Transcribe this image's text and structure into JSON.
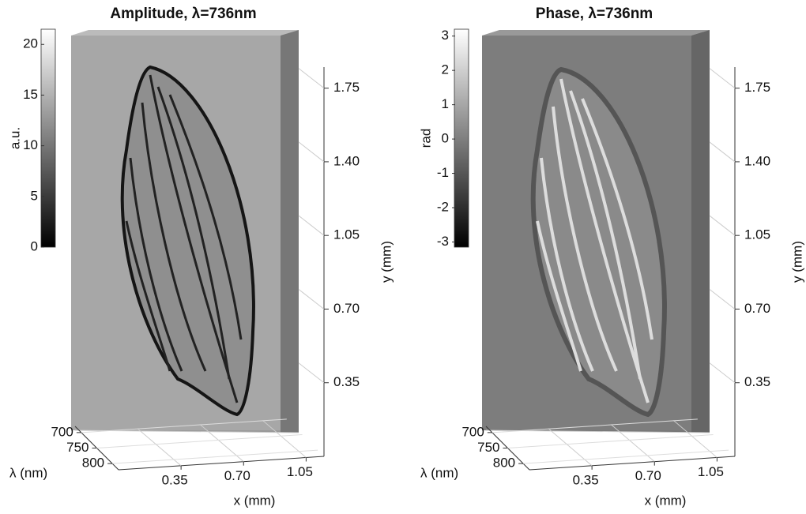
{
  "chart_data": [
    {
      "type": "image-cube",
      "title": "Amplitude, λ=736nm",
      "colorbar": {
        "label": "a.u.",
        "lim": [
          0,
          21.5
        ],
        "ticks": [
          0,
          5,
          10,
          15,
          20
        ]
      },
      "xlabel": "x (mm)",
      "xlim": [
        0,
        1.15
      ],
      "xticks": [
        0.35,
        {
          "value": 0.7,
          "label": "0.70"
        },
        1.05
      ],
      "ylabel": "y (mm)",
      "ylim": [
        0,
        1.85
      ],
      "yticks": [
        0.35,
        {
          "value": 0.7,
          "label": "0.70"
        },
        1.05,
        {
          "value": 1.4,
          "label": "1.40"
        },
        1.75
      ],
      "zlabel": "λ (nm)",
      "zlim": [
        680,
        820
      ],
      "zticks": [
        700,
        750,
        800
      ]
    },
    {
      "type": "image-cube",
      "title": "Phase, λ=736nm",
      "colorbar": {
        "label": "rad",
        "lim": [
          -3.15,
          3.2
        ],
        "ticks": [
          -3,
          -2,
          -1,
          0,
          1,
          2,
          3
        ]
      },
      "xlabel": "x (mm)",
      "xlim": [
        0,
        1.15
      ],
      "xticks": [
        0.35,
        {
          "value": 0.7,
          "label": "0.70"
        },
        1.05
      ],
      "ylabel": "y (mm)",
      "ylim": [
        0,
        1.85
      ],
      "yticks": [
        0.35,
        {
          "value": 0.7,
          "label": "0.70"
        },
        1.05,
        {
          "value": 1.4,
          "label": "1.40"
        },
        1.75
      ],
      "zlabel": "λ (nm)",
      "zlim": [
        680,
        820
      ],
      "zticks": [
        700,
        750,
        800
      ]
    }
  ]
}
